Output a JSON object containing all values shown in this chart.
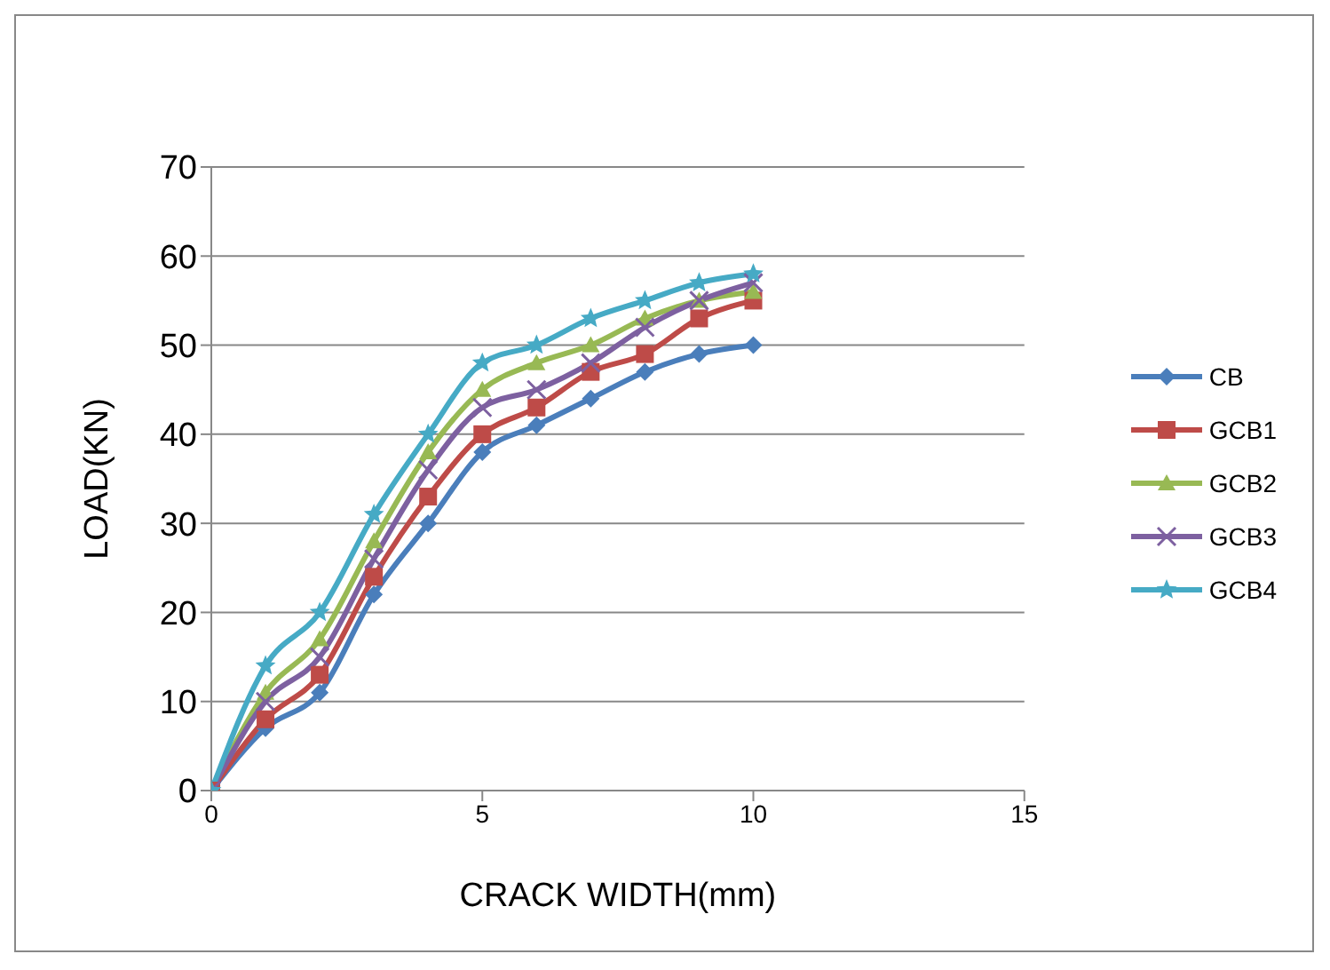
{
  "chart_data": {
    "type": "line",
    "xlabel": "CRACK WIDTH(mm)",
    "ylabel": "LOAD(KN)",
    "x": [
      0,
      1,
      2,
      3,
      4,
      5,
      6,
      7,
      8,
      9,
      10
    ],
    "series": [
      {
        "name": "CB",
        "color": "#4a7ebb",
        "marker": "diamond",
        "values": [
          0,
          7,
          11,
          22,
          30,
          38,
          41,
          44,
          47,
          49,
          50
        ]
      },
      {
        "name": "GCB1",
        "color": "#be4b48",
        "marker": "square",
        "values": [
          0,
          8,
          13,
          24,
          33,
          40,
          43,
          47,
          49,
          53,
          55
        ]
      },
      {
        "name": "GCB2",
        "color": "#98b954",
        "marker": "triangle",
        "values": [
          0,
          11,
          17,
          28,
          38,
          45,
          48,
          50,
          53,
          55,
          56
        ]
      },
      {
        "name": "GCB3",
        "color": "#7d60a0",
        "marker": "cross",
        "values": [
          0,
          10,
          15,
          26,
          36,
          43,
          45,
          48,
          52,
          55,
          57
        ]
      },
      {
        "name": "GCB4",
        "color": "#46aac5",
        "marker": "star",
        "values": [
          0,
          14,
          20,
          31,
          40,
          48,
          50,
          53,
          55,
          57,
          58
        ]
      }
    ],
    "xlim": [
      0,
      15
    ],
    "xticks": [
      0,
      5,
      10,
      15
    ],
    "ylim": [
      0,
      70
    ],
    "yticks": [
      0,
      10,
      20,
      30,
      40,
      50,
      60,
      70
    ],
    "grid": "y",
    "legend": "right"
  }
}
